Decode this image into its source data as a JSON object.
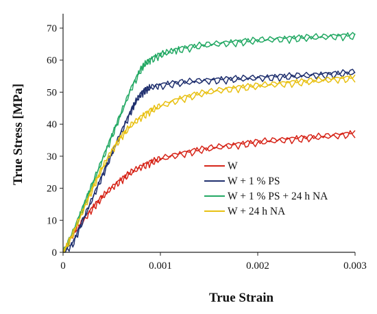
{
  "chart_data": {
    "type": "line",
    "title": "",
    "xlabel": "True Strain",
    "ylabel": "True Stress [MPa]",
    "xlim": [
      0,
      0.003
    ],
    "ylim": [
      0,
      70
    ],
    "xticks": [
      0,
      0.001,
      0.002,
      0.003
    ],
    "xtick_labels": [
      "0",
      "0.001",
      "0.002",
      "0.003"
    ],
    "yticks": [
      0,
      10,
      20,
      30,
      40,
      50,
      60,
      70
    ],
    "ytick_labels": [
      "0",
      "10",
      "20",
      "30",
      "40",
      "50",
      "60",
      "70"
    ],
    "grid": false,
    "legend_position": "center-right",
    "series": [
      {
        "name": "W",
        "color": "#d62418",
        "x": [
          0,
          0.0001,
          0.0002,
          0.0003,
          0.0004,
          0.0005,
          0.0006,
          0.0007,
          0.0008,
          0.0009,
          0.001,
          0.0012,
          0.0014,
          0.0016,
          0.0018,
          0.002,
          0.0022,
          0.0024,
          0.0026,
          0.0028,
          0.003
        ],
        "y": [
          0,
          6,
          10,
          14,
          17.5,
          20.5,
          23,
          25.3,
          27,
          28.4,
          29.5,
          31,
          32.3,
          33.2,
          34,
          34.7,
          35.3,
          35.8,
          36.3,
          36.8,
          37.5
        ]
      },
      {
        "name": "W + 1 % PS",
        "color": "#1f2f6e",
        "x": [
          0,
          0.0001,
          0.0002,
          0.0003,
          0.0004,
          0.0005,
          0.0006,
          0.0007,
          0.00075,
          0.0008,
          0.00085,
          0.0009,
          0.001,
          0.0012,
          0.0014,
          0.0016,
          0.0018,
          0.002,
          0.0022,
          0.0024,
          0.0026,
          0.0028,
          0.003
        ],
        "y": [
          0,
          3,
          10,
          17,
          24,
          31,
          38,
          44.5,
          47.5,
          49.8,
          51,
          51.8,
          52.5,
          53.3,
          53.8,
          54.2,
          54.5,
          54.8,
          55.1,
          55.4,
          55.7,
          56,
          56.6
        ]
      },
      {
        "name": "W + 1 % PS + 24 h NA",
        "color": "#22a863",
        "x": [
          0,
          0.0001,
          0.0002,
          0.0003,
          0.0004,
          0.0005,
          0.0006,
          0.0007,
          0.0008,
          0.00085,
          0.0009,
          0.001,
          0.0011,
          0.0012,
          0.0014,
          0.0016,
          0.0018,
          0.002,
          0.0022,
          0.0024,
          0.0026,
          0.0028,
          0.003
        ],
        "y": [
          0,
          6.5,
          14,
          21.5,
          29,
          36.5,
          44,
          51.5,
          57.5,
          59.3,
          60.5,
          62,
          63,
          63.8,
          64.8,
          65.5,
          66,
          66.5,
          66.9,
          67.2,
          67.5,
          67.8,
          68
        ]
      },
      {
        "name": "W + 24 h NA",
        "color": "#e8c012",
        "x": [
          0,
          0.0001,
          0.0002,
          0.0003,
          0.0004,
          0.0005,
          0.0006,
          0.0007,
          0.0008,
          0.0009,
          0.001,
          0.0012,
          0.0014,
          0.0016,
          0.0018,
          0.002,
          0.0022,
          0.0024,
          0.0026,
          0.0028,
          0.003
        ],
        "y": [
          0,
          6,
          13,
          20,
          26.5,
          32,
          36.5,
          40,
          42.5,
          44.5,
          46,
          48.2,
          49.8,
          50.9,
          51.7,
          52.3,
          52.9,
          53.4,
          53.9,
          54.4,
          54.8
        ]
      }
    ]
  }
}
